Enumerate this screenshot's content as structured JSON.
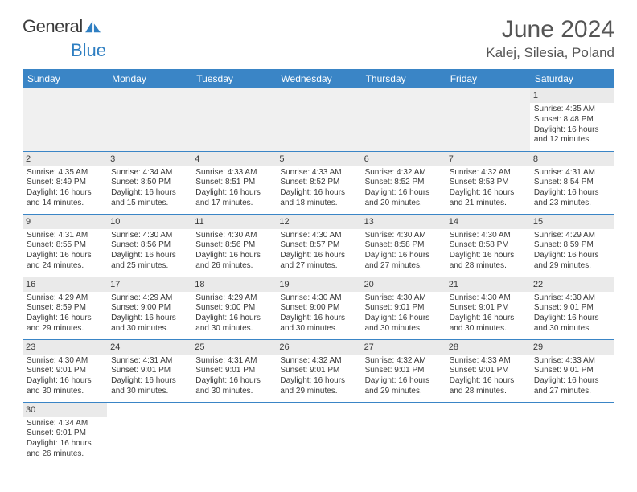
{
  "logo": {
    "general": "General",
    "blue": "Blue"
  },
  "header": {
    "title": "June 2024",
    "location": "Kalej, Silesia, Poland"
  },
  "colors": {
    "header_bg": "#3a85c6",
    "header_fg": "#ffffff",
    "daynum_bg": "#eaeaea",
    "text": "#3a3a3a",
    "accent": "#2f7fc2"
  },
  "weekdays": [
    "Sunday",
    "Monday",
    "Tuesday",
    "Wednesday",
    "Thursday",
    "Friday",
    "Saturday"
  ],
  "weeks": [
    [
      null,
      null,
      null,
      null,
      null,
      null,
      {
        "d": "1",
        "sr": "Sunrise: 4:35 AM",
        "ss": "Sunset: 8:48 PM",
        "dl1": "Daylight: 16 hours",
        "dl2": "and 12 minutes."
      }
    ],
    [
      {
        "d": "2",
        "sr": "Sunrise: 4:35 AM",
        "ss": "Sunset: 8:49 PM",
        "dl1": "Daylight: 16 hours",
        "dl2": "and 14 minutes."
      },
      {
        "d": "3",
        "sr": "Sunrise: 4:34 AM",
        "ss": "Sunset: 8:50 PM",
        "dl1": "Daylight: 16 hours",
        "dl2": "and 15 minutes."
      },
      {
        "d": "4",
        "sr": "Sunrise: 4:33 AM",
        "ss": "Sunset: 8:51 PM",
        "dl1": "Daylight: 16 hours",
        "dl2": "and 17 minutes."
      },
      {
        "d": "5",
        "sr": "Sunrise: 4:33 AM",
        "ss": "Sunset: 8:52 PM",
        "dl1": "Daylight: 16 hours",
        "dl2": "and 18 minutes."
      },
      {
        "d": "6",
        "sr": "Sunrise: 4:32 AM",
        "ss": "Sunset: 8:52 PM",
        "dl1": "Daylight: 16 hours",
        "dl2": "and 20 minutes."
      },
      {
        "d": "7",
        "sr": "Sunrise: 4:32 AM",
        "ss": "Sunset: 8:53 PM",
        "dl1": "Daylight: 16 hours",
        "dl2": "and 21 minutes."
      },
      {
        "d": "8",
        "sr": "Sunrise: 4:31 AM",
        "ss": "Sunset: 8:54 PM",
        "dl1": "Daylight: 16 hours",
        "dl2": "and 23 minutes."
      }
    ],
    [
      {
        "d": "9",
        "sr": "Sunrise: 4:31 AM",
        "ss": "Sunset: 8:55 PM",
        "dl1": "Daylight: 16 hours",
        "dl2": "and 24 minutes."
      },
      {
        "d": "10",
        "sr": "Sunrise: 4:30 AM",
        "ss": "Sunset: 8:56 PM",
        "dl1": "Daylight: 16 hours",
        "dl2": "and 25 minutes."
      },
      {
        "d": "11",
        "sr": "Sunrise: 4:30 AM",
        "ss": "Sunset: 8:56 PM",
        "dl1": "Daylight: 16 hours",
        "dl2": "and 26 minutes."
      },
      {
        "d": "12",
        "sr": "Sunrise: 4:30 AM",
        "ss": "Sunset: 8:57 PM",
        "dl1": "Daylight: 16 hours",
        "dl2": "and 27 minutes."
      },
      {
        "d": "13",
        "sr": "Sunrise: 4:30 AM",
        "ss": "Sunset: 8:58 PM",
        "dl1": "Daylight: 16 hours",
        "dl2": "and 27 minutes."
      },
      {
        "d": "14",
        "sr": "Sunrise: 4:30 AM",
        "ss": "Sunset: 8:58 PM",
        "dl1": "Daylight: 16 hours",
        "dl2": "and 28 minutes."
      },
      {
        "d": "15",
        "sr": "Sunrise: 4:29 AM",
        "ss": "Sunset: 8:59 PM",
        "dl1": "Daylight: 16 hours",
        "dl2": "and 29 minutes."
      }
    ],
    [
      {
        "d": "16",
        "sr": "Sunrise: 4:29 AM",
        "ss": "Sunset: 8:59 PM",
        "dl1": "Daylight: 16 hours",
        "dl2": "and 29 minutes."
      },
      {
        "d": "17",
        "sr": "Sunrise: 4:29 AM",
        "ss": "Sunset: 9:00 PM",
        "dl1": "Daylight: 16 hours",
        "dl2": "and 30 minutes."
      },
      {
        "d": "18",
        "sr": "Sunrise: 4:29 AM",
        "ss": "Sunset: 9:00 PM",
        "dl1": "Daylight: 16 hours",
        "dl2": "and 30 minutes."
      },
      {
        "d": "19",
        "sr": "Sunrise: 4:30 AM",
        "ss": "Sunset: 9:00 PM",
        "dl1": "Daylight: 16 hours",
        "dl2": "and 30 minutes."
      },
      {
        "d": "20",
        "sr": "Sunrise: 4:30 AM",
        "ss": "Sunset: 9:01 PM",
        "dl1": "Daylight: 16 hours",
        "dl2": "and 30 minutes."
      },
      {
        "d": "21",
        "sr": "Sunrise: 4:30 AM",
        "ss": "Sunset: 9:01 PM",
        "dl1": "Daylight: 16 hours",
        "dl2": "and 30 minutes."
      },
      {
        "d": "22",
        "sr": "Sunrise: 4:30 AM",
        "ss": "Sunset: 9:01 PM",
        "dl1": "Daylight: 16 hours",
        "dl2": "and 30 minutes."
      }
    ],
    [
      {
        "d": "23",
        "sr": "Sunrise: 4:30 AM",
        "ss": "Sunset: 9:01 PM",
        "dl1": "Daylight: 16 hours",
        "dl2": "and 30 minutes."
      },
      {
        "d": "24",
        "sr": "Sunrise: 4:31 AM",
        "ss": "Sunset: 9:01 PM",
        "dl1": "Daylight: 16 hours",
        "dl2": "and 30 minutes."
      },
      {
        "d": "25",
        "sr": "Sunrise: 4:31 AM",
        "ss": "Sunset: 9:01 PM",
        "dl1": "Daylight: 16 hours",
        "dl2": "and 30 minutes."
      },
      {
        "d": "26",
        "sr": "Sunrise: 4:32 AM",
        "ss": "Sunset: 9:01 PM",
        "dl1": "Daylight: 16 hours",
        "dl2": "and 29 minutes."
      },
      {
        "d": "27",
        "sr": "Sunrise: 4:32 AM",
        "ss": "Sunset: 9:01 PM",
        "dl1": "Daylight: 16 hours",
        "dl2": "and 29 minutes."
      },
      {
        "d": "28",
        "sr": "Sunrise: 4:33 AM",
        "ss": "Sunset: 9:01 PM",
        "dl1": "Daylight: 16 hours",
        "dl2": "and 28 minutes."
      },
      {
        "d": "29",
        "sr": "Sunrise: 4:33 AM",
        "ss": "Sunset: 9:01 PM",
        "dl1": "Daylight: 16 hours",
        "dl2": "and 27 minutes."
      }
    ],
    [
      {
        "d": "30",
        "sr": "Sunrise: 4:34 AM",
        "ss": "Sunset: 9:01 PM",
        "dl1": "Daylight: 16 hours",
        "dl2": "and 26 minutes."
      },
      null,
      null,
      null,
      null,
      null,
      null
    ]
  ]
}
